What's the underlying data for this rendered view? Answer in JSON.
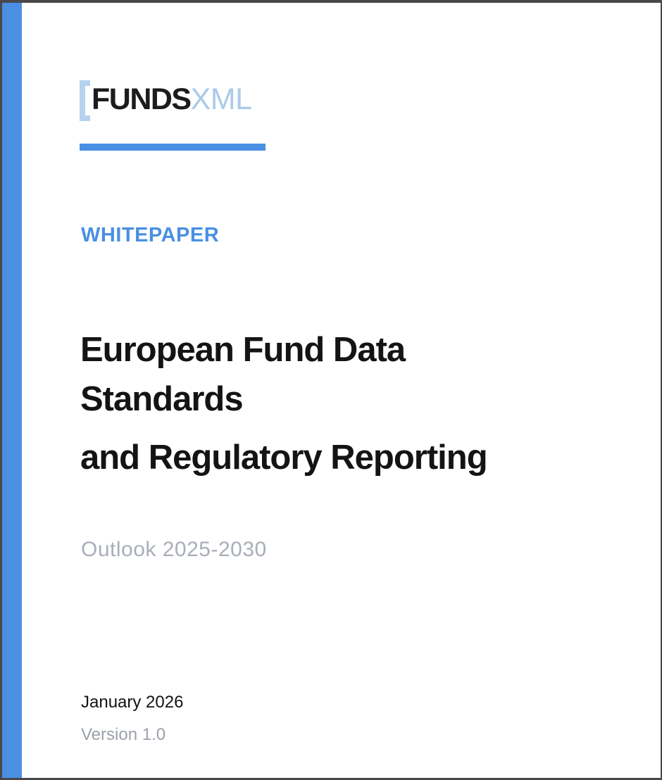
{
  "document": {
    "logo": {
      "bracket": "[",
      "funds": "FUNDS",
      "xml": "XML"
    },
    "eyebrow": "WHITEPAPER",
    "title": {
      "line1": "European Fund Data",
      "line2": "Standards",
      "line3": "and Regulatory Reporting"
    },
    "subtitle": "Outlook 2025-2030",
    "footer": {
      "date": "January 2026",
      "version": "Version 1.0"
    },
    "colors": {
      "accent_blue": "#4a8fe2",
      "rule_blue": "#4a90e2",
      "logo_light_blue": "#aacbe9",
      "title_color": "#141414",
      "muted_gray": "#a8aeb8",
      "frame_gray": "#48484b"
    }
  }
}
